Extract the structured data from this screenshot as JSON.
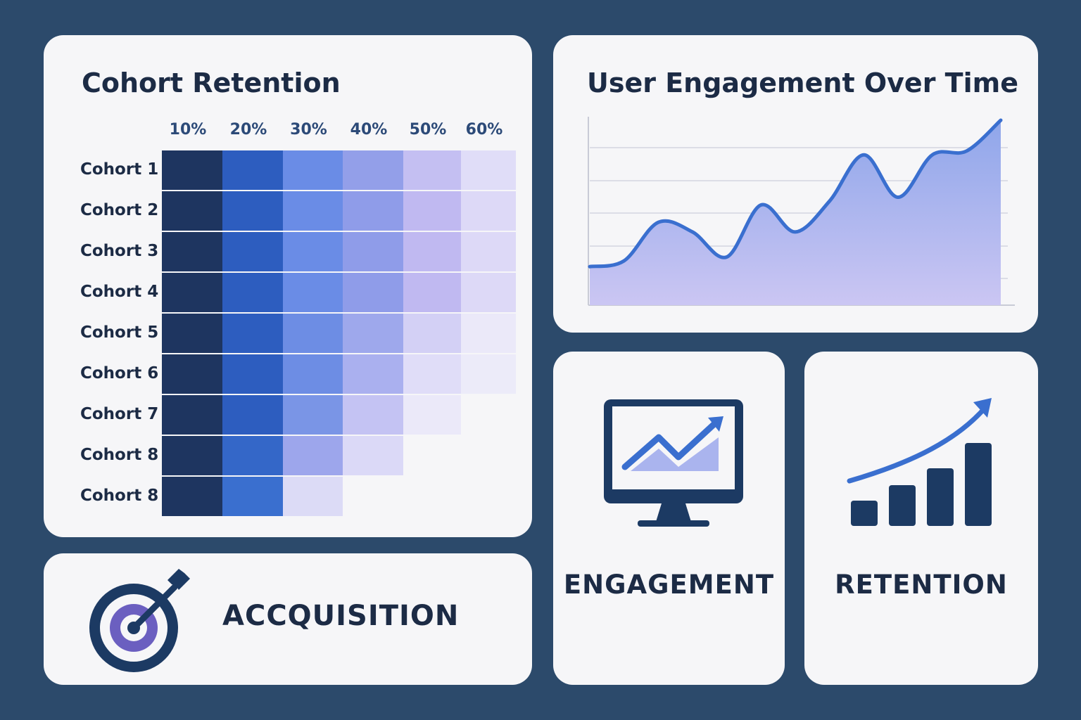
{
  "cohort_card": {
    "title": "Cohort Retention"
  },
  "engagement_chart_card": {
    "title": "User Engagement Over Time"
  },
  "tiles": {
    "acquisition": {
      "label": "ACCQUISITION",
      "icon": "target-arrow-icon"
    },
    "engagement": {
      "label": "ENGAGEMENT",
      "icon": "monitor-chart-icon"
    },
    "retention": {
      "label": "RETENTION",
      "icon": "bar-growth-icon"
    }
  },
  "colors": {
    "background": "#2c4a6b",
    "card": "#f6f6f8",
    "navy": "#1c2b45",
    "accent_blue": "#3a6fcf"
  },
  "chart_data": [
    {
      "type": "heatmap",
      "title": "Cohort Retention",
      "columns": [
        "10%",
        "20%",
        "30%",
        "40%",
        "50%",
        "60%"
      ],
      "rows": [
        "Cohort 1",
        "Cohort 2",
        "Cohort 3",
        "Cohort 4",
        "Cohort 5",
        "Cohort 6",
        "Cohort 7",
        "Cohort 8",
        "Cohort 8"
      ],
      "cells_per_row": [
        6,
        6,
        6,
        6,
        6,
        6,
        5,
        4,
        3
      ],
      "palette": [
        "#1e3560",
        "#2d5dbf",
        "#6a8ce6",
        "#939fe9",
        "#c7c4f3",
        "#e0ddf8"
      ],
      "row_fades": [
        [
          "#1e3560",
          "#2d5dbf",
          "#6a8ce6",
          "#939fe9",
          "#c4bff2",
          "#e0ddf8"
        ],
        [
          "#1e3560",
          "#2d5dbf",
          "#6a8ce6",
          "#8f9ce9",
          "#c0b9f1",
          "#ddd9f7"
        ],
        [
          "#1e3560",
          "#2d5dbf",
          "#6a8ce6",
          "#8f9ce9",
          "#c0b9f1",
          "#ddd9f7"
        ],
        [
          "#1e3560",
          "#2d5dbf",
          "#6a8ce6",
          "#8f9ce9",
          "#c0b9f1",
          "#ddd9f7"
        ],
        [
          "#1e3560",
          "#2d5dbf",
          "#6d8de4",
          "#9ea8ec",
          "#d3d0f5",
          "#ebe9f9"
        ],
        [
          "#1e3560",
          "#2d5dbf",
          "#6d8de4",
          "#aab0ef",
          "#e0ddf8",
          "#ecebf9"
        ],
        [
          "#1e3560",
          "#2d5dbf",
          "#7a95e6",
          "#c4c3f3",
          "#ebe9f9"
        ],
        [
          "#1e3560",
          "#3467c8",
          "#9da6ec",
          "#dbd9f7"
        ],
        [
          "#1e3560",
          "#3a6fcf",
          "#dcdbf6"
        ]
      ]
    },
    {
      "type": "area",
      "title": "User Engagement Over Time",
      "xlabel": "",
      "ylabel": "",
      "ylim": [
        0,
        100
      ],
      "x": [
        0,
        1,
        2,
        3,
        4,
        5,
        6,
        7,
        8,
        9,
        10,
        11,
        12
      ],
      "values": [
        20,
        23,
        43,
        38,
        25,
        52,
        38,
        54,
        78,
        56,
        78,
        80,
        96
      ],
      "grid": true
    }
  ]
}
